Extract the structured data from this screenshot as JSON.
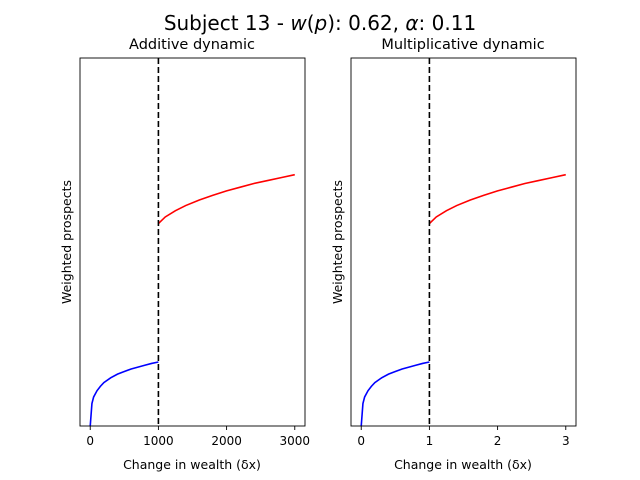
{
  "suptitle": {
    "prefix": "Subject 13 - ",
    "w_symbol": "w",
    "w_arg": "p",
    "w_value": "0.62",
    "alpha_symbol": "α",
    "alpha_value": "0.11"
  },
  "colors": {
    "lower_curve": "#0000ff",
    "upper_curve": "#ff0000",
    "threshold_line": "#000000"
  },
  "chart_data": [
    {
      "type": "line",
      "title": "Additive dynamic",
      "xlabel": "Change in wealth (δx)",
      "ylabel": "Weighted prospects",
      "xlim": [
        -150,
        3150
      ],
      "ylim": [
        0,
        1
      ],
      "xticks": [
        0,
        1000,
        2000,
        3000
      ],
      "xtick_labels": [
        "0",
        "1000",
        "2000",
        "3000"
      ],
      "yticks": [],
      "threshold_x": 1000,
      "series": [
        {
          "color": "blue",
          "x": [
            0,
            25,
            50,
            100,
            150,
            200,
            300,
            400,
            500,
            600,
            700,
            800,
            900,
            1000
          ],
          "y": [
            0,
            0.061,
            0.079,
            0.096,
            0.108,
            0.118,
            0.131,
            0.141,
            0.148,
            0.155,
            0.16,
            0.165,
            0.17,
            0.174
          ]
        },
        {
          "color": "red",
          "x": [
            1000,
            1100,
            1250,
            1400,
            1600,
            1800,
            2000,
            2200,
            2400,
            2600,
            2800,
            3000
          ],
          "y": [
            0.55,
            0.568,
            0.585,
            0.599,
            0.614,
            0.627,
            0.639,
            0.649,
            0.659,
            0.667,
            0.675,
            0.683
          ]
        }
      ]
    },
    {
      "type": "line",
      "title": "Multiplicative dynamic",
      "xlabel": "Change in wealth (δx)",
      "ylabel": "Weighted prospects",
      "xlim": [
        -0.15,
        3.15
      ],
      "ylim": [
        0,
        1
      ],
      "xticks": [
        0,
        1,
        2,
        3
      ],
      "xtick_labels": [
        "0",
        "1",
        "2",
        "3"
      ],
      "yticks": [],
      "threshold_x": 1,
      "series": [
        {
          "color": "blue",
          "x": [
            0,
            0.025,
            0.05,
            0.1,
            0.15,
            0.2,
            0.3,
            0.4,
            0.5,
            0.6,
            0.7,
            0.8,
            0.9,
            1.0
          ],
          "y": [
            0,
            0.061,
            0.079,
            0.096,
            0.108,
            0.118,
            0.131,
            0.141,
            0.148,
            0.155,
            0.16,
            0.165,
            0.17,
            0.174
          ]
        },
        {
          "color": "red",
          "x": [
            1.0,
            1.1,
            1.25,
            1.4,
            1.6,
            1.8,
            2.0,
            2.2,
            2.4,
            2.6,
            2.8,
            3.0
          ],
          "y": [
            0.55,
            0.568,
            0.585,
            0.599,
            0.614,
            0.627,
            0.639,
            0.649,
            0.659,
            0.667,
            0.675,
            0.683
          ]
        }
      ]
    }
  ]
}
